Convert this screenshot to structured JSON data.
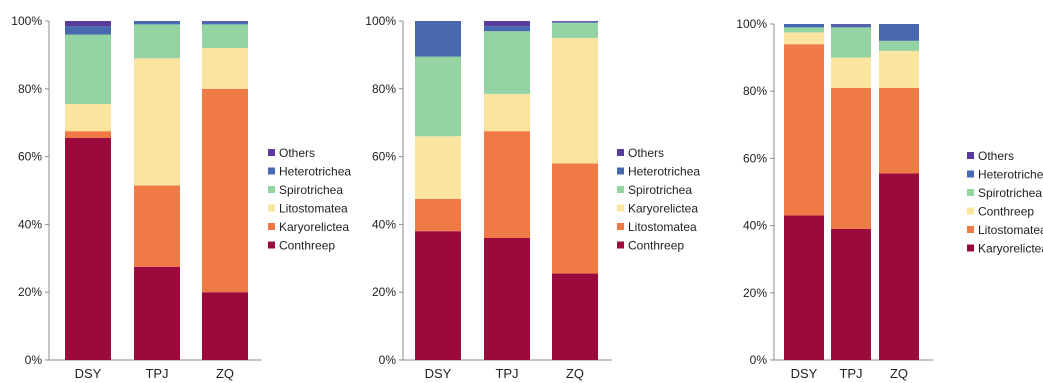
{
  "chart_data": [
    {
      "type": "bar",
      "stacked": true,
      "categories": [
        "DSY",
        "TPJ",
        "ZQ"
      ],
      "ylim": [
        0,
        100
      ],
      "ytick_labels": [
        "0%",
        "20%",
        "40%",
        "60%",
        "80%",
        "100%"
      ],
      "grid": false,
      "legend_position": "right",
      "series": [
        {
          "name": "Conthreep",
          "color": "#9b0a3c",
          "values": [
            65.5,
            27.5,
            20.0
          ]
        },
        {
          "name": "Karyorelictea",
          "color": "#f07a46",
          "values": [
            2.0,
            24.0,
            60.0
          ]
        },
        {
          "name": "Litostomatea",
          "color": "#fbe4a0",
          "values": [
            8.0,
            37.5,
            12.0
          ]
        },
        {
          "name": "Spirotrichea",
          "color": "#93d4a2",
          "values": [
            20.5,
            10.0,
            7.0
          ]
        },
        {
          "name": "Heterotrichea",
          "color": "#4868b0",
          "values": [
            2.5,
            1.0,
            0.8
          ]
        },
        {
          "name": "Others",
          "color": "#5b3c9a",
          "values": [
            1.5,
            0.0,
            0.2
          ]
        }
      ],
      "legend_order": [
        "Others",
        "Heterotrichea",
        "Spirotrichea",
        "Litostomatea",
        "Karyorelictea",
        "Conthreep"
      ]
    },
    {
      "type": "bar",
      "stacked": true,
      "categories": [
        "DSY",
        "TPJ",
        "ZQ"
      ],
      "ylim": [
        0,
        100
      ],
      "ytick_labels": [
        "0%",
        "20%",
        "40%",
        "60%",
        "80%",
        "100%"
      ],
      "grid": false,
      "legend_position": "right",
      "series": [
        {
          "name": "Conthreep",
          "color": "#9b0a3c",
          "values": [
            38.0,
            36.0,
            25.5
          ]
        },
        {
          "name": "Litostomatea",
          "color": "#f07a46",
          "values": [
            9.5,
            31.5,
            32.5
          ]
        },
        {
          "name": "Karyorelictea",
          "color": "#fbe4a0",
          "values": [
            18.5,
            11.0,
            37.0
          ]
        },
        {
          "name": "Spirotrichea",
          "color": "#93d4a2",
          "values": [
            23.5,
            18.5,
            4.5
          ]
        },
        {
          "name": "Heterotrichea",
          "color": "#4868b0",
          "values": [
            10.5,
            1.5,
            0.3
          ]
        },
        {
          "name": "Others",
          "color": "#5b3c9a",
          "values": [
            0.0,
            1.5,
            0.2
          ]
        }
      ],
      "legend_order": [
        "Others",
        "Heterotrichea",
        "Spirotrichea",
        "Karyorelictea",
        "Litostomatea",
        "Conthreep"
      ]
    },
    {
      "type": "bar",
      "stacked": true,
      "categories": [
        "DSY",
        "TPJ",
        "ZQ"
      ],
      "ylim": [
        0,
        100
      ],
      "ytick_labels": [
        "0%",
        "20%",
        "40%",
        "60%",
        "80%",
        "100%"
      ],
      "grid": false,
      "legend_position": "right",
      "series": [
        {
          "name": "Karyorelictea",
          "color": "#9b0a3c",
          "values": [
            43.0,
            39.0,
            55.5
          ]
        },
        {
          "name": "Litostomatea",
          "color": "#f07a46",
          "values": [
            51.0,
            42.0,
            25.5
          ]
        },
        {
          "name": "Conthreep",
          "color": "#fbe4a0",
          "values": [
            3.5,
            9.0,
            11.0
          ]
        },
        {
          "name": "Spirotrichea",
          "color": "#93d4a2",
          "values": [
            1.5,
            9.0,
            3.0
          ]
        },
        {
          "name": "Heterotrichea",
          "color": "#4868b0",
          "values": [
            1.0,
            0.8,
            5.0
          ]
        },
        {
          "name": "Others",
          "color": "#5b3c9a",
          "values": [
            0.0,
            0.2,
            0.0
          ]
        }
      ],
      "legend_order": [
        "Others",
        "Heterotrichea",
        "Spirotrichea",
        "Conthreep",
        "Litostomatea",
        "Karyorelictea"
      ]
    }
  ]
}
